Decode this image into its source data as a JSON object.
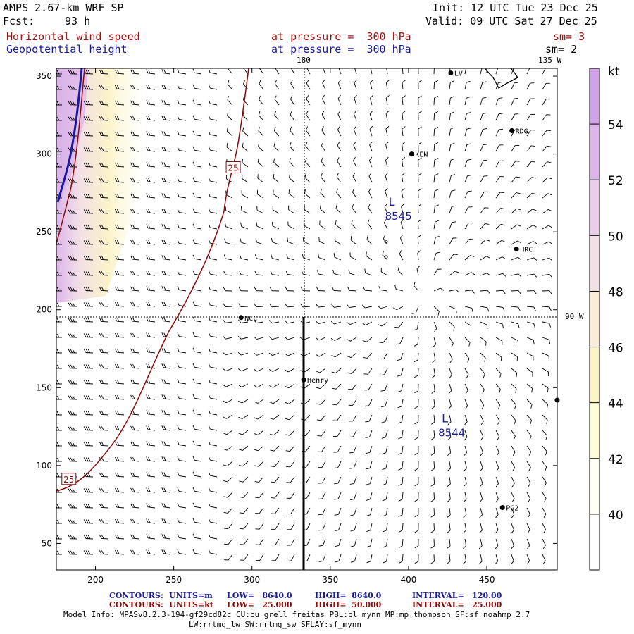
{
  "header": {
    "model": "AMPS 2.67-km WRF SP",
    "fcst_label": "Fcst:",
    "fcst_value": "93 h",
    "init": "Init: 12 UTC Tue 23 Dec 25",
    "valid": "Valid: 09 UTC Sat 27 Dec 25",
    "field1": "Horizontal wind speed",
    "field1_level": "at pressure =  300 hPa",
    "field1_sm": "sm= 3",
    "field2": "Geopotential height",
    "field2_level": "at pressure =  300 hPa",
    "field2_sm": "sm= 2"
  },
  "map_labels": {
    "lon_180": "180",
    "lon_135w": "135 W",
    "lon_90w": "90 W"
  },
  "stations": [
    {
      "name": "LV",
      "x": 427,
      "y": 352
    },
    {
      "name": "RDG",
      "x": 466,
      "y": 315
    },
    {
      "name": "KEN",
      "x": 402,
      "y": 300
    },
    {
      "name": "HRC",
      "x": 469,
      "y": 239
    },
    {
      "name": "NCC",
      "x": 293,
      "y": 195
    },
    {
      "name": "Henry",
      "x": 333,
      "y": 155
    },
    {
      "name": "",
      "x": 495,
      "y": 142
    },
    {
      "name": "PG2",
      "x": 460,
      "y": 73
    }
  ],
  "lows": [
    {
      "label": "L",
      "value": "8545",
      "x": 385,
      "y": 264
    },
    {
      "label": "L",
      "value": "8544",
      "x": 419,
      "y": 125
    }
  ],
  "contour_labels": [
    {
      "value": "25",
      "x": 183,
      "y": 91
    },
    {
      "value": "25",
      "x": 288,
      "y": 291
    }
  ],
  "axes": {
    "x_ticks": [
      200,
      250,
      300,
      350,
      400,
      450
    ],
    "y_ticks": [
      50,
      100,
      150,
      200,
      250,
      300,
      350
    ],
    "xlim": [
      175,
      495
    ],
    "ylim": [
      33,
      355
    ]
  },
  "colorbar": {
    "unit": "kt",
    "levels": [
      40,
      42,
      44,
      46,
      48,
      50,
      52,
      54
    ],
    "colors": [
      "#fffff4",
      "#fffcd8",
      "#fbf3c8",
      "#f9ecd8",
      "#f3e0e6",
      "#eacdea",
      "#dcb6ea",
      "#d0a2e6"
    ]
  },
  "footer": {
    "c1_label": "CONTOURS:",
    "c1_units": "UNITS=m",
    "c1_low": "LOW=   8640.0",
    "c1_high": "HIGH=  8640.0",
    "c1_interval": "INTERVAL=   120.00",
    "c2_label": "CONTOURS:",
    "c2_units": "UNITS=kt",
    "c2_low": "LOW=   25.000",
    "c2_high": "HIGH=  50.000",
    "c2_interval": "INTERVAL=   25.000",
    "model_info": "Model Info: MPASv8.2.3-194-gf29cd82c CU:cu_grell_freitas PBL:bl_mynn MP:mp_thompson SF:sf_noahmp 2.7",
    "model_info2": "LW:rrtmg_lw SW:rrtmg_sw SFLAY:sf_mynn"
  }
}
